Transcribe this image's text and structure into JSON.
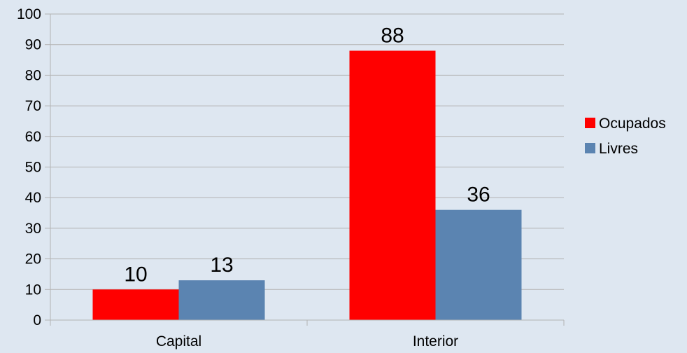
{
  "chart_data": {
    "type": "bar",
    "categories": [
      "Capital",
      "Interior"
    ],
    "series": [
      {
        "name": "Ocupados",
        "values": [
          10,
          88
        ],
        "color": "#ff0000"
      },
      {
        "name": "Livres",
        "values": [
          13,
          36
        ],
        "color": "#5b84b1"
      }
    ],
    "ylim": [
      0,
      100
    ],
    "yticks": [
      0,
      10,
      20,
      30,
      40,
      50,
      60,
      70,
      80,
      90,
      100
    ],
    "grid": true,
    "legend_position": "right",
    "data_labels": true,
    "background_color": "#dee7f1",
    "grid_color": "#b3b3b3"
  }
}
